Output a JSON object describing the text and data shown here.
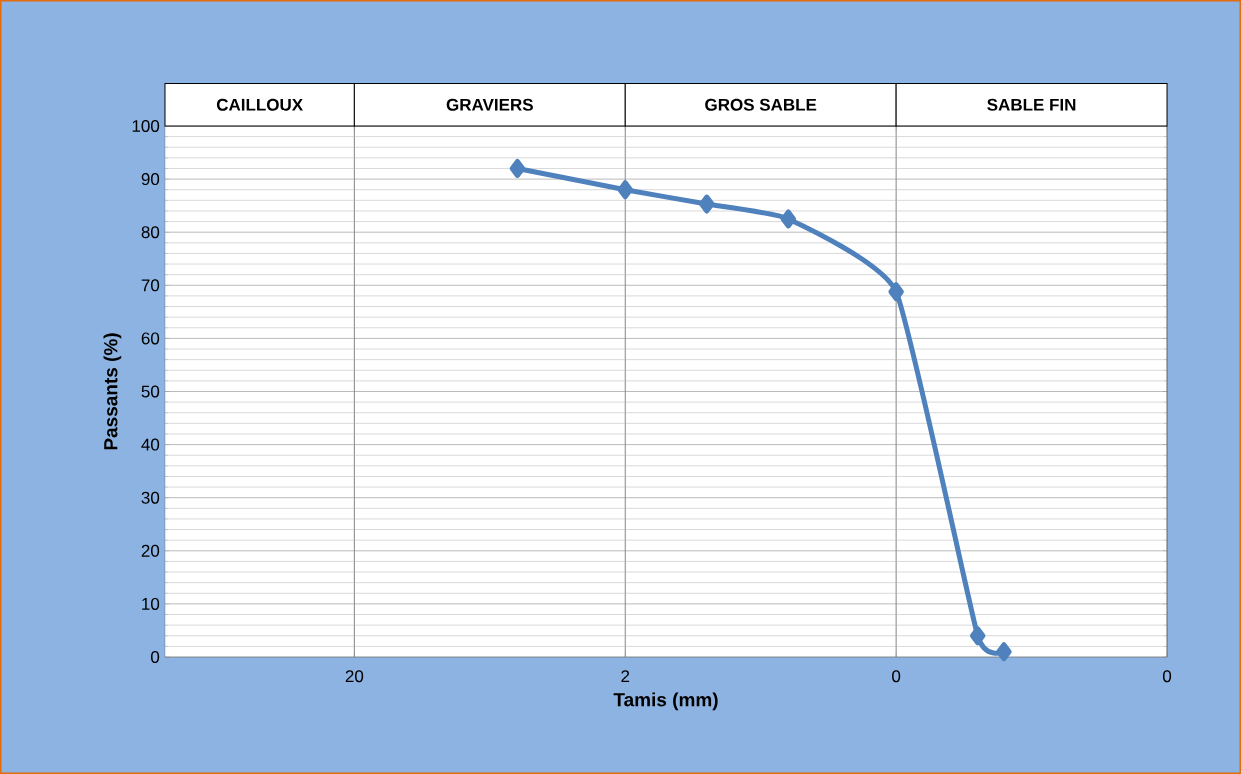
{
  "chart_data": {
    "type": "line",
    "xlabel": "Tamis (mm)",
    "ylabel": "Passants (%)",
    "x": [
      5,
      2,
      1,
      0.5,
      0.2,
      0.1,
      0.08
    ],
    "series": [
      {
        "color": "#4f81bd",
        "values": [
          92,
          88,
          85.3,
          82.5,
          68.8,
          4,
          1
        ]
      }
    ],
    "xlim": [
      100,
      0.02
    ],
    "ylim": [
      0,
      100
    ],
    "log": "x",
    "xticks": [
      20,
      2,
      {
        "value": 0.2,
        "label": "0"
      },
      {
        "value": 0.02,
        "label": "0"
      }
    ],
    "yticks": [
      0,
      10,
      20,
      30,
      40,
      50,
      60,
      70,
      80,
      90,
      100
    ],
    "grid": true,
    "marker": "diamond",
    "line_style": "solid",
    "annotations": [
      "CAILLOUX",
      "GRAVIERS",
      "GROS SABLE",
      "SABLE FIN"
    ]
  }
}
